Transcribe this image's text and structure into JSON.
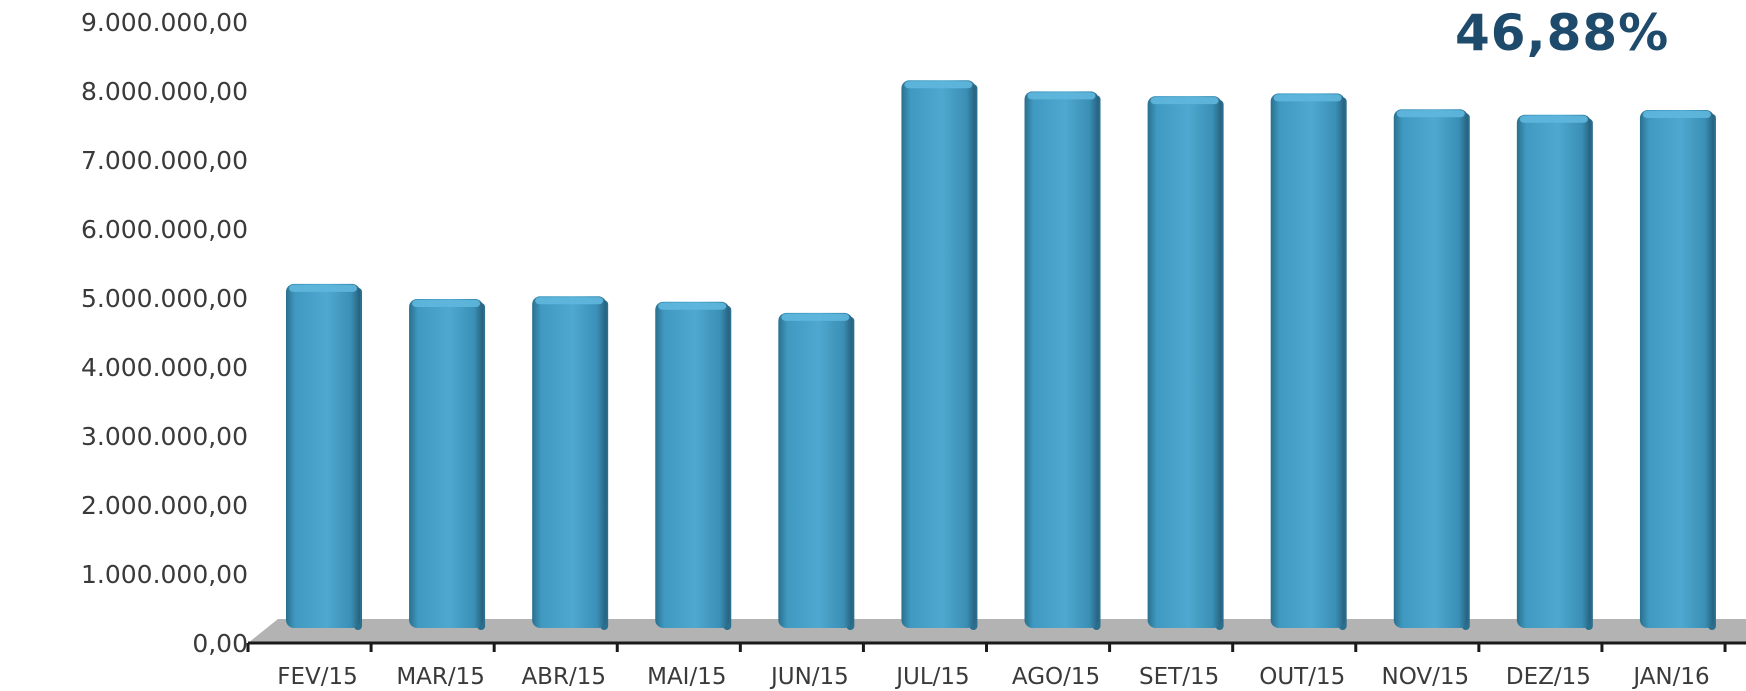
{
  "headline": "46,88%",
  "colors": {
    "bar": "#3f99c0",
    "bar_light": "#5fb7dd",
    "bar_dark": "#2a6f8e",
    "floor": "#b3b3b3",
    "axis": "#1a1a1a",
    "headline": "#1e4a6b"
  },
  "chart_data": {
    "type": "bar",
    "title": "",
    "xlabel": "",
    "ylabel": "",
    "ylim": [
      0,
      9000000
    ],
    "grid": false,
    "legend": "none",
    "categories": [
      "FEV/15",
      "MAR/15",
      "ABR/15",
      "MAI/15",
      "JUN/15",
      "JUL/15",
      "AGO/15",
      "SET/15",
      "OUT/15",
      "NOV/15",
      "DEZ/15",
      "JAN/16"
    ],
    "values": [
      5350000,
      5130000,
      5170000,
      5090000,
      4930000,
      8300000,
      8140000,
      8070000,
      8110000,
      7880000,
      7800000,
      7870000
    ],
    "yticks": [
      {
        "value": 0,
        "label": "0,00"
      },
      {
        "value": 1000000,
        "label": "1.000.000,00"
      },
      {
        "value": 2000000,
        "label": "2.000.000,00"
      },
      {
        "value": 3000000,
        "label": "3.000.000,00"
      },
      {
        "value": 4000000,
        "label": "4.000.000,00"
      },
      {
        "value": 5000000,
        "label": "5.000.000,00"
      },
      {
        "value": 6000000,
        "label": "6.000.000,00"
      },
      {
        "value": 7000000,
        "label": "7.000.000,00"
      },
      {
        "value": 8000000,
        "label": "8.000.000,00"
      },
      {
        "value": 9000000,
        "label": "9.000.000,00"
      }
    ]
  }
}
